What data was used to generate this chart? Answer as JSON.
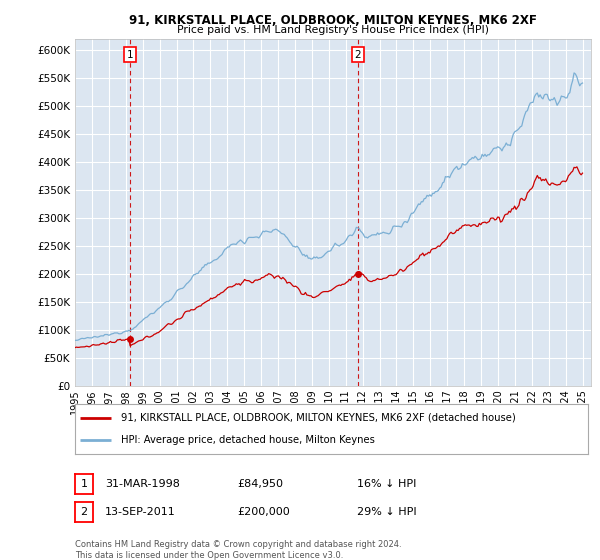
{
  "title": "91, KIRKSTALL PLACE, OLDBROOK, MILTON KEYNES, MK6 2XF",
  "subtitle": "Price paid vs. HM Land Registry's House Price Index (HPI)",
  "ylim": [
    0,
    620000
  ],
  "yticks": [
    0,
    50000,
    100000,
    150000,
    200000,
    250000,
    300000,
    350000,
    400000,
    450000,
    500000,
    550000,
    600000
  ],
  "ytick_labels": [
    "£0",
    "£50K",
    "£100K",
    "£150K",
    "£200K",
    "£250K",
    "£300K",
    "£350K",
    "£400K",
    "£450K",
    "£500K",
    "£550K",
    "£600K"
  ],
  "background_color": "#ffffff",
  "plot_bg_color": "#dce6f1",
  "grid_color": "#ffffff",
  "hpi_color": "#7bafd4",
  "price_color": "#cc0000",
  "sale1_date_num": 1998.25,
  "sale1_price": 84950,
  "sale1_label": "1",
  "sale2_date_num": 2011.71,
  "sale2_price": 200000,
  "sale2_label": "2",
  "legend_entry1": "91, KIRKSTALL PLACE, OLDBROOK, MILTON KEYNES, MK6 2XF (detached house)",
  "legend_entry2": "HPI: Average price, detached house, Milton Keynes",
  "annotation1_date": "31-MAR-1998",
  "annotation1_price": "£84,950",
  "annotation1_hpi": "16% ↓ HPI",
  "annotation2_date": "13-SEP-2011",
  "annotation2_price": "£200,000",
  "annotation2_hpi": "29% ↓ HPI",
  "footnote": "Contains HM Land Registry data © Crown copyright and database right 2024.\nThis data is licensed under the Open Government Licence v3.0.",
  "xmin": 1995.0,
  "xmax": 2025.5
}
